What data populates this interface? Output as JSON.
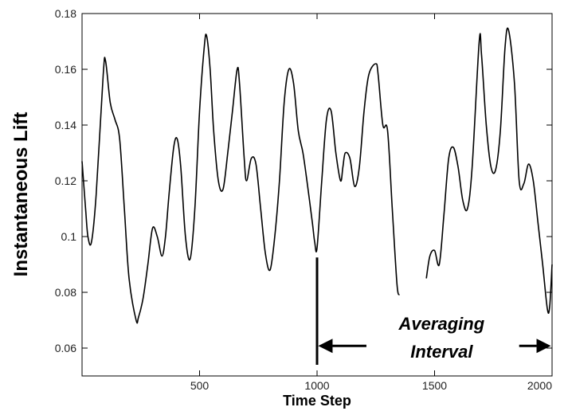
{
  "chart_data": {
    "type": "line",
    "title": "",
    "xlabel": "Time Step",
    "ylabel": "Instantaneous Lift",
    "xlim": [
      0,
      2000
    ],
    "ylim": [
      0.05,
      0.18
    ],
    "xticks": [
      500,
      1000,
      1500,
      2000
    ],
    "xtick_labels": [
      "500",
      "1000",
      "1500",
      "2000"
    ],
    "yticks": [
      0.06,
      0.08,
      0.1,
      0.12,
      0.14,
      0.16,
      0.18
    ],
    "ytick_labels": [
      "0.06",
      "0.08",
      "0.1",
      "0.12",
      "0.14",
      "0.16",
      "0.18"
    ],
    "grid": false,
    "line_color": "#000000",
    "series": [
      {
        "name": "",
        "segments": [
          {
            "x": [
              0,
              15,
              25,
              40,
              60,
              90,
              100,
              120,
              140,
              160,
              180,
              200,
              230,
              240,
              260,
              280,
              300,
              320,
              340,
              355,
              370,
              390,
              405,
              420,
              440,
              460,
              480,
              500,
              520,
              530,
              545,
              560,
              580,
              600,
              620,
              640,
              660,
              670,
              690,
              700,
              720,
              740,
              760,
              780,
              800,
              820,
              840,
              860,
              880,
              900,
              920,
              940,
              960,
              980,
              990,
              1000,
              1020,
              1040,
              1060,
              1080,
              1100,
              1110,
              1120,
              1140,
              1160,
              1180,
              1200,
              1220,
              1250,
              1260,
              1280,
              1300,
              1320,
              1340,
              1350
            ],
            "y": [
              0.127,
              0.11,
              0.1,
              0.098,
              0.115,
              0.158,
              0.163,
              0.148,
              0.142,
              0.135,
              0.11,
              0.085,
              0.07,
              0.071,
              0.078,
              0.09,
              0.103,
              0.1,
              0.093,
              0.1,
              0.115,
              0.132,
              0.135,
              0.125,
              0.1,
              0.092,
              0.11,
              0.145,
              0.168,
              0.172,
              0.16,
              0.138,
              0.12,
              0.117,
              0.13,
              0.145,
              0.16,
              0.155,
              0.128,
              0.12,
              0.128,
              0.126,
              0.11,
              0.094,
              0.088,
              0.1,
              0.12,
              0.148,
              0.16,
              0.155,
              0.138,
              0.13,
              0.118,
              0.105,
              0.098,
              0.096,
              0.12,
              0.142,
              0.145,
              0.13,
              0.12,
              0.125,
              0.13,
              0.128,
              0.118,
              0.125,
              0.145,
              0.158,
              0.162,
              0.158,
              0.14,
              0.138,
              0.11,
              0.083,
              0.079
            ]
          },
          {
            "x": [
              1465,
              1480,
              1500,
              1520,
              1540,
              1560,
              1580,
              1600,
              1620,
              1640,
              1660,
              1690,
              1700,
              1720,
              1740,
              1760,
              1780,
              1800,
              1815,
              1840,
              1860,
              1880,
              1900,
              1920,
              1940,
              1960,
              1980,
              1990,
              2000
            ],
            "y": [
              0.085,
              0.093,
              0.095,
              0.09,
              0.108,
              0.128,
              0.132,
              0.125,
              0.113,
              0.11,
              0.125,
              0.17,
              0.165,
              0.14,
              0.125,
              0.124,
              0.138,
              0.168,
              0.174,
              0.155,
              0.12,
              0.119,
              0.126,
              0.12,
              0.105,
              0.09,
              0.074,
              0.075,
              0.09
            ]
          }
        ]
      }
    ],
    "annotations": [
      {
        "text": "Averaging",
        "x": 1530,
        "y": 0.0666
      },
      {
        "text": "Interval",
        "x": 1530,
        "y": 0.0566
      }
    ],
    "marker_line": {
      "x": 1000,
      "y_from": 0.054,
      "y_to": 0.0925
    },
    "interval_arrows": [
      {
        "from": 1210,
        "to": 1005,
        "y": 0.0608
      },
      {
        "from": 1860,
        "to": 1995,
        "y": 0.0608
      }
    ]
  }
}
